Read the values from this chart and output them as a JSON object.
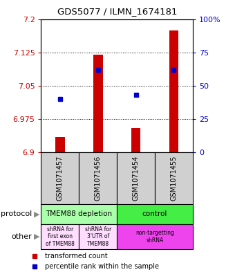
{
  "title": "GDS5077 / ILMN_1674181",
  "samples": [
    "GSM1071457",
    "GSM1071456",
    "GSM1071454",
    "GSM1071455"
  ],
  "ylim": [
    6.9,
    7.2
  ],
  "y_ticks": [
    6.9,
    6.975,
    7.05,
    7.125,
    7.2
  ],
  "y_tick_labels": [
    "6.9",
    "6.975",
    "7.05",
    "7.125",
    "7.2"
  ],
  "y2_ticks": [
    0,
    25,
    50,
    75,
    100
  ],
  "y2_tick_labels": [
    "0",
    "25",
    "50",
    "75",
    "100%"
  ],
  "bar_values": [
    6.935,
    7.12,
    6.955,
    7.175
  ],
  "bar_base": 6.9,
  "dot_values": [
    7.02,
    7.085,
    7.03,
    7.085
  ],
  "bar_color": "#cc0000",
  "dot_color": "#0000cc",
  "protocol_labels": [
    "TMEM88 depletion",
    "control"
  ],
  "protocol_colors": [
    "#aaffaa",
    "#44ee44"
  ],
  "other_labels": [
    "shRNA for\nfirst exon\nof TMEM88",
    "shRNA for\n3'UTR of\nTMEM88",
    "non-targetting\nshRNA"
  ],
  "other_colors_left": "#ffddff",
  "other_colors_right": "#ee44ee",
  "legend_items": [
    "transformed count",
    "percentile rank within the sample"
  ],
  "bar_width": 0.25,
  "label_bg": "#d0d0d0"
}
